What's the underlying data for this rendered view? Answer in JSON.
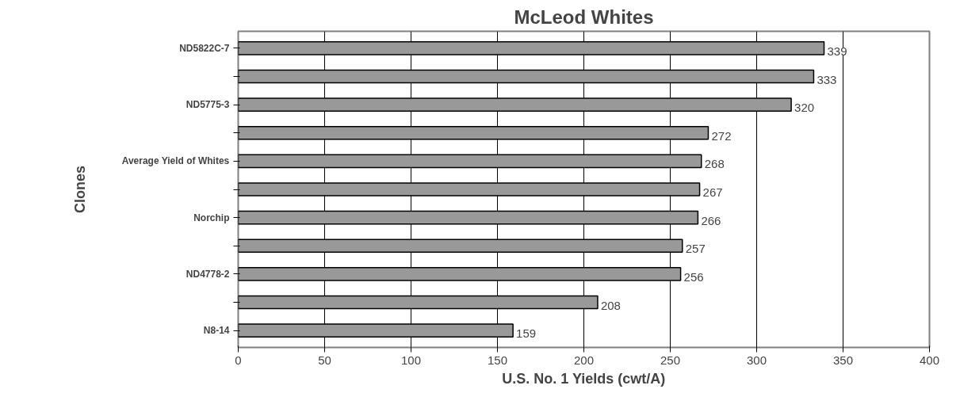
{
  "chart_data": {
    "type": "bar",
    "orientation": "horizontal",
    "title": "McLeod Whites",
    "xlabel": "U.S. No. 1 Yields (cwt/A)",
    "ylabel": "Clones",
    "categories": [
      "ND5822C-7",
      null,
      "ND5775-3",
      null,
      "Average Yield of Whites",
      null,
      "Norchip",
      null,
      "ND4778-2",
      null,
      "N8-14"
    ],
    "values": [
      339,
      333,
      320,
      272,
      268,
      267,
      266,
      257,
      256,
      208,
      159
    ],
    "color": "#999999",
    "xlim": [
      0,
      400
    ],
    "xticks": [
      0,
      50,
      100,
      150,
      200,
      250,
      300,
      350,
      400
    ],
    "grid": "x",
    "data_labels": true
  }
}
